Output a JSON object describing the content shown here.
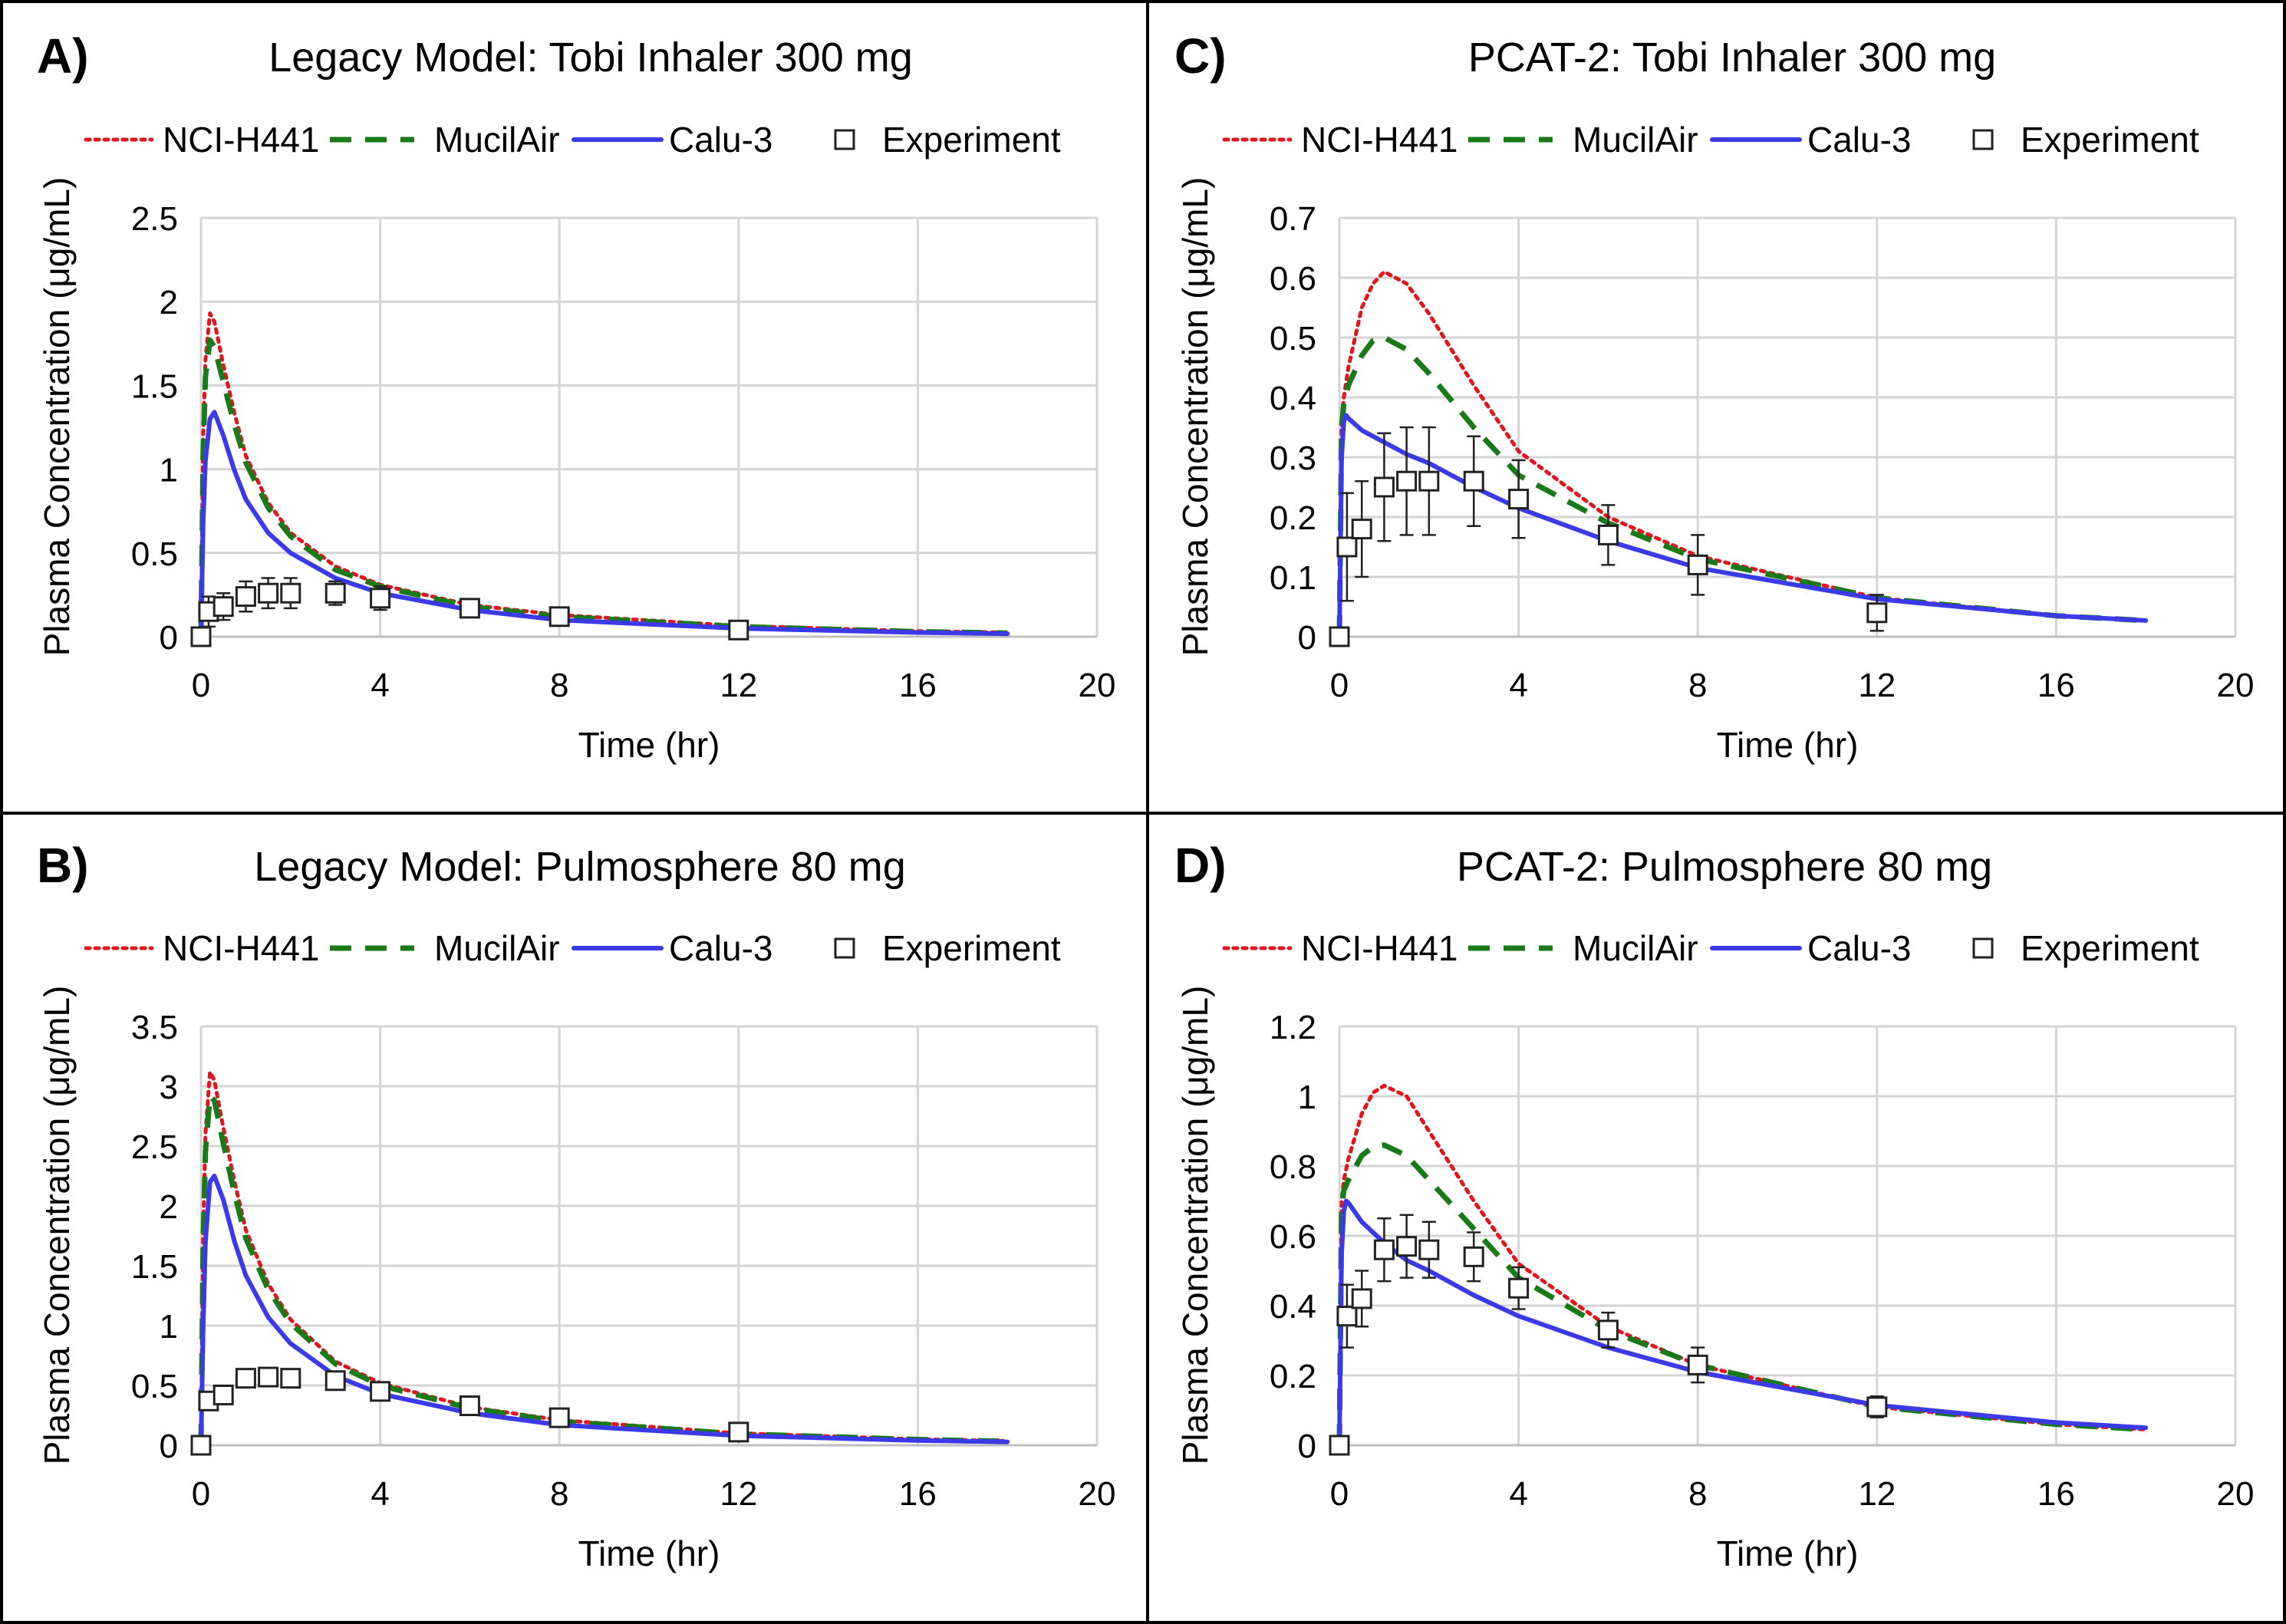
{
  "colors": {
    "nci_h441": "#e0161e",
    "mucilair": "#1a7a1a",
    "calu3": "#3a3ae6",
    "experiment": "#222222",
    "grid": "#d4d4d4",
    "frame": "#000000"
  },
  "legend_labels": [
    "NCI-H441",
    "MucilAir",
    "Calu-3",
    "Experiment"
  ],
  "chart_data": [
    {
      "id": "A",
      "type": "line",
      "letter": "A)",
      "title": "Legacy Model: Tobi Inhaler 300 mg",
      "xlabel": "Time (hr)",
      "ylabel": "Plasma Concentration (μg/mL)",
      "xlim": [
        0,
        20
      ],
      "ylim": [
        0,
        2.5
      ],
      "xticks": [
        0,
        4,
        8,
        12,
        16,
        20
      ],
      "yticks": [
        0,
        0.5,
        1,
        1.5,
        2,
        2.5
      ],
      "ytick_labels": [
        "0",
        "0.5",
        "1",
        "1.5",
        "2",
        "2.5"
      ],
      "legend_position": "top",
      "grid": true,
      "series": [
        {
          "name": "NCI-H441",
          "style": "dotted",
          "x": [
            0,
            0.05,
            0.1,
            0.2,
            0.3,
            0.5,
            0.75,
            1,
            1.5,
            2,
            3,
            4,
            6,
            8,
            12,
            16,
            18
          ],
          "y": [
            0,
            1.2,
            1.65,
            1.93,
            1.88,
            1.62,
            1.33,
            1.08,
            0.8,
            0.62,
            0.42,
            0.31,
            0.19,
            0.13,
            0.065,
            0.033,
            0.025
          ]
        },
        {
          "name": "MucilAir",
          "style": "dashed",
          "x": [
            0,
            0.05,
            0.1,
            0.2,
            0.3,
            0.5,
            0.75,
            1,
            1.5,
            2,
            3,
            4,
            6,
            8,
            12,
            16,
            18
          ],
          "y": [
            0,
            1.1,
            1.55,
            1.77,
            1.73,
            1.52,
            1.26,
            1.04,
            0.77,
            0.6,
            0.4,
            0.3,
            0.18,
            0.12,
            0.06,
            0.03,
            0.022
          ]
        },
        {
          "name": "Calu-3",
          "style": "solid",
          "x": [
            0,
            0.05,
            0.1,
            0.2,
            0.3,
            0.5,
            0.75,
            1,
            1.5,
            2,
            3,
            4,
            6,
            8,
            12,
            16,
            18
          ],
          "y": [
            0,
            0.7,
            1.05,
            1.3,
            1.34,
            1.2,
            0.99,
            0.82,
            0.62,
            0.5,
            0.35,
            0.26,
            0.16,
            0.1,
            0.05,
            0.025,
            0.018
          ]
        }
      ],
      "experiment": {
        "name": "Experiment",
        "x": [
          0,
          0.17,
          0.5,
          1,
          1.5,
          2,
          3,
          4,
          6,
          8,
          12
        ],
        "y": [
          0,
          0.15,
          0.18,
          0.24,
          0.26,
          0.26,
          0.26,
          0.23,
          0.17,
          0.12,
          0.04
        ],
        "err": [
          0,
          0.09,
          0.08,
          0.09,
          0.09,
          0.09,
          0.07,
          0.07,
          0.05,
          0.05,
          0.03
        ]
      }
    },
    {
      "id": "C",
      "type": "line",
      "letter": "C)",
      "title": "PCAT-2: Tobi Inhaler 300 mg",
      "xlabel": "Time (hr)",
      "ylabel": "Plasma Concentration (μg/mL)",
      "xlim": [
        0,
        20
      ],
      "ylim": [
        0,
        0.7
      ],
      "xticks": [
        0,
        4,
        8,
        12,
        16,
        20
      ],
      "yticks": [
        0,
        0.1,
        0.2,
        0.3,
        0.4,
        0.5,
        0.6,
        0.7
      ],
      "ytick_labels": [
        "0",
        "0.1",
        "0.2",
        "0.3",
        "0.4",
        "0.5",
        "0.6",
        "0.7"
      ],
      "legend_position": "top",
      "grid": true,
      "series": [
        {
          "name": "NCI-H441",
          "style": "dotted",
          "x": [
            0,
            0.05,
            0.1,
            0.2,
            0.5,
            0.75,
            1,
            1.5,
            2,
            3,
            4,
            6,
            8,
            12,
            16,
            18
          ],
          "y": [
            0,
            0.36,
            0.4,
            0.45,
            0.55,
            0.59,
            0.61,
            0.59,
            0.54,
            0.42,
            0.31,
            0.2,
            0.135,
            0.065,
            0.035,
            0.027
          ]
        },
        {
          "name": "MucilAir",
          "style": "dashed",
          "x": [
            0,
            0.05,
            0.1,
            0.2,
            0.5,
            0.75,
            1,
            1.5,
            2,
            3,
            4,
            6,
            8,
            12,
            16,
            18
          ],
          "y": [
            0,
            0.35,
            0.39,
            0.42,
            0.47,
            0.495,
            0.5,
            0.48,
            0.44,
            0.35,
            0.27,
            0.19,
            0.13,
            0.065,
            0.035,
            0.027
          ]
        },
        {
          "name": "Calu-3",
          "style": "solid",
          "x": [
            0,
            0.05,
            0.1,
            0.15,
            0.2,
            0.5,
            0.75,
            1,
            1.5,
            2,
            3,
            4,
            6,
            8,
            12,
            16,
            18
          ],
          "y": [
            0,
            0.3,
            0.36,
            0.37,
            0.365,
            0.345,
            0.335,
            0.325,
            0.305,
            0.29,
            0.25,
            0.215,
            0.16,
            0.115,
            0.063,
            0.035,
            0.027
          ]
        }
      ],
      "experiment": {
        "name": "Experiment",
        "x": [
          0,
          0.17,
          0.5,
          1,
          1.5,
          2,
          3,
          4,
          6,
          8,
          12
        ],
        "y": [
          0,
          0.15,
          0.18,
          0.25,
          0.26,
          0.26,
          0.26,
          0.23,
          0.17,
          0.12,
          0.04
        ],
        "err": [
          0,
          0.09,
          0.08,
          0.09,
          0.09,
          0.09,
          0.075,
          0.065,
          0.05,
          0.05,
          0.03
        ]
      }
    },
    {
      "id": "B",
      "type": "line",
      "letter": "B)",
      "title": "Legacy Model: Pulmosphere 80 mg",
      "xlabel": "Time (hr)",
      "ylabel": "Plasma Concentration (μg/mL)",
      "xlim": [
        0,
        20
      ],
      "ylim": [
        0,
        3.5
      ],
      "xticks": [
        0,
        4,
        8,
        12,
        16,
        20
      ],
      "yticks": [
        0,
        0.5,
        1,
        1.5,
        2,
        2.5,
        3,
        3.5
      ],
      "ytick_labels": [
        "0",
        "0.5",
        "1",
        "1.5",
        "2",
        "2.5",
        "3",
        "3.5"
      ],
      "legend_position": "top",
      "grid": true,
      "series": [
        {
          "name": "NCI-H441",
          "style": "dotted",
          "x": [
            0,
            0.05,
            0.1,
            0.2,
            0.3,
            0.5,
            0.75,
            1,
            1.5,
            2,
            3,
            4,
            6,
            8,
            12,
            16,
            18
          ],
          "y": [
            0,
            1.8,
            2.6,
            3.12,
            3.05,
            2.65,
            2.2,
            1.8,
            1.35,
            1.05,
            0.7,
            0.52,
            0.32,
            0.21,
            0.1,
            0.05,
            0.035
          ]
        },
        {
          "name": "MucilAir",
          "style": "dashed",
          "x": [
            0,
            0.05,
            0.1,
            0.2,
            0.3,
            0.5,
            0.75,
            1,
            1.5,
            2,
            3,
            4,
            6,
            8,
            12,
            16,
            18
          ],
          "y": [
            0,
            1.7,
            2.45,
            2.92,
            2.88,
            2.52,
            2.1,
            1.73,
            1.3,
            1.02,
            0.68,
            0.5,
            0.31,
            0.2,
            0.095,
            0.048,
            0.033
          ]
        },
        {
          "name": "Calu-3",
          "style": "solid",
          "x": [
            0,
            0.05,
            0.1,
            0.2,
            0.3,
            0.5,
            0.75,
            1,
            1.5,
            2,
            3,
            4,
            6,
            8,
            12,
            16,
            18
          ],
          "y": [
            0,
            1.0,
            1.7,
            2.2,
            2.25,
            2.05,
            1.7,
            1.42,
            1.07,
            0.85,
            0.58,
            0.43,
            0.27,
            0.17,
            0.08,
            0.04,
            0.028
          ]
        }
      ],
      "experiment": {
        "name": "Experiment",
        "x": [
          0,
          0.17,
          0.5,
          1,
          1.5,
          2,
          3,
          4,
          6,
          8,
          12
        ],
        "y": [
          0,
          0.37,
          0.42,
          0.56,
          0.57,
          0.56,
          0.54,
          0.45,
          0.33,
          0.23,
          0.11
        ],
        "err": [
          0,
          0.07,
          0.07,
          0.07,
          0.07,
          0.06,
          0.05,
          0.05,
          0.04,
          0.04,
          0.03
        ]
      }
    },
    {
      "id": "D",
      "type": "line",
      "letter": "D)",
      "title": "PCAT-2: Pulmosphere 80 mg",
      "xlabel": "Time (hr)",
      "ylabel": "Plasma Concentration (μg/mL)",
      "xlim": [
        0,
        20
      ],
      "ylim": [
        0,
        1.2
      ],
      "xticks": [
        0,
        4,
        8,
        12,
        16,
        20
      ],
      "yticks": [
        0,
        0.2,
        0.4,
        0.6,
        0.8,
        1,
        1.2
      ],
      "ytick_labels": [
        "0",
        "0.2",
        "0.4",
        "0.6",
        "0.8",
        "1",
        "1.2"
      ],
      "legend_position": "top",
      "grid": true,
      "series": [
        {
          "name": "NCI-H441",
          "style": "dotted",
          "x": [
            0,
            0.05,
            0.1,
            0.2,
            0.5,
            0.75,
            1,
            1.5,
            2,
            3,
            4,
            6,
            8,
            12,
            16,
            18
          ],
          "y": [
            0,
            0.7,
            0.76,
            0.82,
            0.95,
            1.01,
            1.03,
            1.0,
            0.9,
            0.7,
            0.52,
            0.34,
            0.23,
            0.11,
            0.06,
            0.045
          ]
        },
        {
          "name": "MucilAir",
          "style": "dashed",
          "x": [
            0,
            0.05,
            0.1,
            0.2,
            0.5,
            0.75,
            1,
            1.5,
            2,
            3,
            4,
            6,
            8,
            12,
            16,
            18
          ],
          "y": [
            0,
            0.68,
            0.73,
            0.76,
            0.83,
            0.855,
            0.86,
            0.83,
            0.76,
            0.62,
            0.48,
            0.33,
            0.23,
            0.11,
            0.06,
            0.045
          ]
        },
        {
          "name": "Calu-3",
          "style": "solid",
          "x": [
            0,
            0.05,
            0.1,
            0.15,
            0.2,
            0.5,
            0.75,
            1,
            1.5,
            2,
            3,
            4,
            6,
            8,
            12,
            16,
            18
          ],
          "y": [
            0,
            0.55,
            0.67,
            0.7,
            0.695,
            0.64,
            0.61,
            0.58,
            0.53,
            0.5,
            0.43,
            0.37,
            0.28,
            0.21,
            0.115,
            0.065,
            0.05
          ]
        }
      ],
      "experiment": {
        "name": "Experiment",
        "x": [
          0,
          0.17,
          0.5,
          1,
          1.5,
          2,
          3,
          4,
          6,
          8,
          12
        ],
        "y": [
          0,
          0.37,
          0.42,
          0.56,
          0.57,
          0.56,
          0.54,
          0.45,
          0.33,
          0.23,
          0.11
        ],
        "err": [
          0,
          0.09,
          0.08,
          0.09,
          0.09,
          0.08,
          0.07,
          0.06,
          0.05,
          0.05,
          0.03
        ]
      }
    }
  ]
}
